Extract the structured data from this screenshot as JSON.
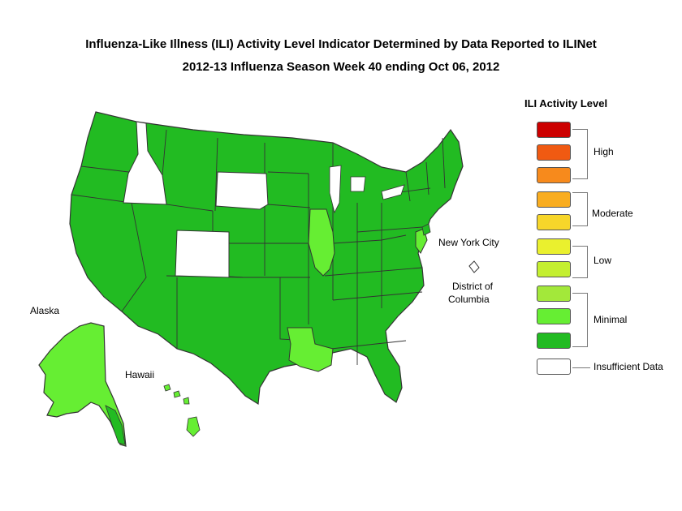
{
  "title_line1": "Influenza-Like Illness (ILI) Activity Level Indicator Determined by Data Reported to ILINet",
  "title_line2": "2012-13  Influenza Season Week  40 ending Oct 06, 2012",
  "legend": {
    "title": "ILI Activity Level",
    "levels": [
      {
        "color": "#cc0000"
      },
      {
        "color": "#f05a12"
      },
      {
        "color": "#f78a1c"
      },
      {
        "color": "#f9ad20"
      },
      {
        "color": "#f7d62a"
      },
      {
        "color": "#eaf02e"
      },
      {
        "color": "#c4ef30"
      },
      {
        "color": "#a3e83a"
      },
      {
        "color": "#66ee33"
      },
      {
        "color": "#22bb22"
      },
      {
        "color": "#ffffff"
      }
    ],
    "groups": [
      {
        "label": "High"
      },
      {
        "label": "Moderate"
      },
      {
        "label": "Low"
      },
      {
        "label": "Minimal"
      },
      {
        "label": "Insufficient Data"
      }
    ]
  },
  "map_labels": {
    "alaska": "Alaska",
    "hawaii": "Hawaii",
    "nyc": "New York City",
    "dc_line1": "District of",
    "dc_line2": "Columbia"
  },
  "colors": {
    "minimal_dark": "#22bb22",
    "minimal_light": "#66ee33",
    "insufficient": "#ffffff",
    "border": "#333333"
  },
  "states": {
    "minimal_light": [
      "Illinois",
      "Louisiana",
      "Alaska",
      "Hawaii",
      "New Jersey"
    ],
    "insufficient_data": [
      "Idaho",
      "South Dakota",
      "Colorado",
      "District of Columbia"
    ],
    "minimal_dark": "all other states"
  }
}
